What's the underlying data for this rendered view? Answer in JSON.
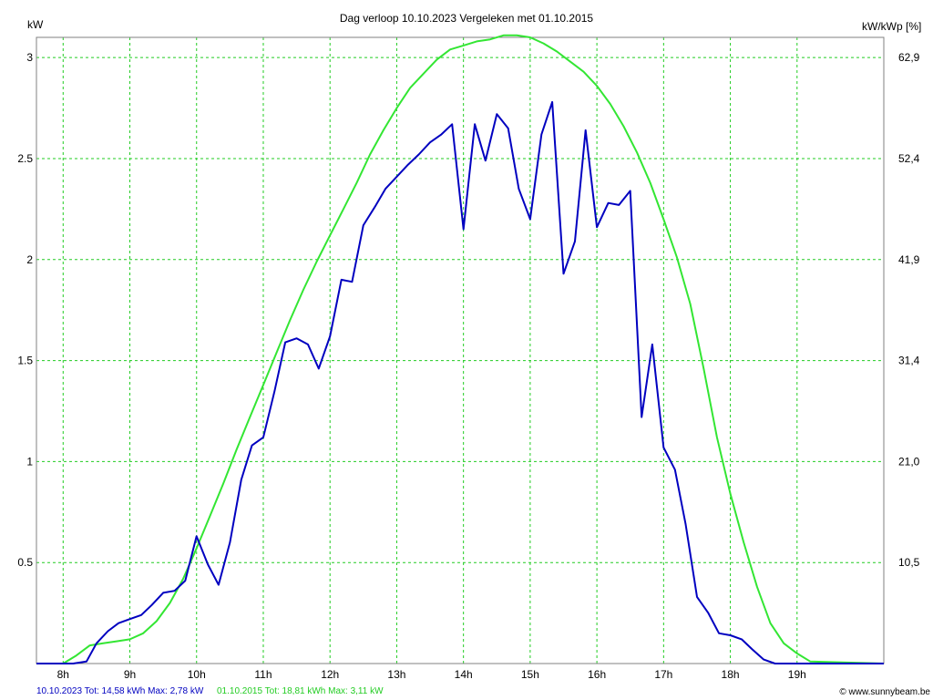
{
  "chart_data": {
    "type": "line",
    "title": "Dag  verloop 10.10.2023   Vergeleken met 01.10.2015",
    "ylabel_left": "kW",
    "ylabel_right": "kW/kWp [%]",
    "y_ticks_left": [
      "0.5",
      "1",
      "1.5",
      "2",
      "2.5",
      "3"
    ],
    "y_tick_values_left": [
      0.5,
      1,
      1.5,
      2,
      2.5,
      3
    ],
    "y_ticks_right": [
      "10,5",
      "21,0",
      "31,4",
      "41,9",
      "52,4",
      "62,9"
    ],
    "ylim": [
      0,
      3.1
    ],
    "xlim": [
      7.6,
      20.3
    ],
    "x_ticks": [
      "8h",
      "9h",
      "10h",
      "11h",
      "12h",
      "13h",
      "14h",
      "15h",
      "16h",
      "17h",
      "18h",
      "19h"
    ],
    "x_tick_values": [
      8,
      9,
      10,
      11,
      12,
      13,
      14,
      15,
      16,
      17,
      18,
      19
    ],
    "grid": true,
    "series": [
      {
        "name": "10.10.2023",
        "color": "#0000c0",
        "x": [
          7.6,
          8.0,
          8.15,
          8.35,
          8.5,
          8.67,
          8.83,
          9.0,
          9.17,
          9.33,
          9.5,
          9.67,
          9.83,
          10.0,
          10.17,
          10.33,
          10.5,
          10.67,
          10.83,
          11.0,
          11.17,
          11.33,
          11.5,
          11.67,
          11.83,
          12.0,
          12.17,
          12.33,
          12.5,
          12.67,
          12.83,
          13.0,
          13.17,
          13.33,
          13.5,
          13.67,
          13.83,
          14.0,
          14.17,
          14.33,
          14.5,
          14.67,
          14.83,
          15.0,
          15.17,
          15.33,
          15.5,
          15.67,
          15.83,
          16.0,
          16.17,
          16.33,
          16.5,
          16.67,
          16.83,
          17.0,
          17.17,
          17.33,
          17.5,
          17.67,
          17.83,
          18.0,
          18.17,
          18.33,
          18.5,
          18.67,
          18.83,
          19.0,
          19.17,
          20.3
        ],
        "y": [
          0,
          0,
          0,
          0.01,
          0.1,
          0.16,
          0.2,
          0.22,
          0.24,
          0.29,
          0.35,
          0.36,
          0.41,
          0.63,
          0.49,
          0.39,
          0.6,
          0.91,
          1.08,
          1.12,
          1.35,
          1.59,
          1.61,
          1.58,
          1.46,
          1.62,
          1.9,
          1.89,
          2.17,
          2.26,
          2.35,
          2.41,
          2.47,
          2.52,
          2.58,
          2.62,
          2.67,
          2.15,
          2.67,
          2.49,
          2.72,
          2.65,
          2.35,
          2.2,
          2.62,
          2.78,
          1.93,
          2.09,
          2.64,
          2.16,
          2.28,
          2.27,
          2.34,
          1.22,
          1.58,
          1.07,
          0.96,
          0.69,
          0.33,
          0.25,
          0.15,
          0.14,
          0.12,
          0.07,
          0.02,
          0.0,
          0.0,
          0,
          0,
          0
        ]
      },
      {
        "name": "01.10.2015",
        "color": "#33e633",
        "x": [
          7.6,
          8.0,
          8.2,
          8.4,
          8.6,
          8.8,
          9.0,
          9.2,
          9.4,
          9.6,
          9.8,
          10.0,
          10.2,
          10.4,
          10.6,
          10.8,
          11.0,
          11.2,
          11.4,
          11.6,
          11.8,
          12.0,
          12.2,
          12.4,
          12.6,
          12.8,
          13.0,
          13.2,
          13.4,
          13.6,
          13.8,
          14.0,
          14.2,
          14.4,
          14.6,
          14.8,
          15.0,
          15.2,
          15.4,
          15.6,
          15.8,
          16.0,
          16.2,
          16.4,
          16.6,
          16.8,
          17.0,
          17.2,
          17.4,
          17.6,
          17.8,
          18.0,
          18.2,
          18.4,
          18.6,
          18.8,
          19.0,
          19.2,
          20.3
        ],
        "y": [
          0,
          0,
          0.04,
          0.09,
          0.1,
          0.11,
          0.12,
          0.15,
          0.21,
          0.3,
          0.42,
          0.57,
          0.73,
          0.89,
          1.06,
          1.22,
          1.38,
          1.54,
          1.7,
          1.85,
          1.99,
          2.12,
          2.25,
          2.38,
          2.52,
          2.64,
          2.75,
          2.85,
          2.92,
          2.99,
          3.04,
          3.06,
          3.08,
          3.09,
          3.11,
          3.11,
          3.1,
          3.07,
          3.03,
          2.98,
          2.93,
          2.86,
          2.77,
          2.66,
          2.53,
          2.38,
          2.2,
          2.01,
          1.78,
          1.46,
          1.12,
          0.84,
          0.6,
          0.38,
          0.2,
          0.1,
          0.05,
          0.01,
          0
        ]
      }
    ]
  },
  "footer": {
    "series1_text": "10.10.2023 Tot: 14,58 kWh Max: 2,78 kW",
    "series2_text": "01.10.2015 Tot: 18,81 kWh Max: 3,11 kW",
    "copyright": "© www.sunnybeam.be",
    "series1_color": "#0000c0",
    "series2_color": "#33e633"
  }
}
